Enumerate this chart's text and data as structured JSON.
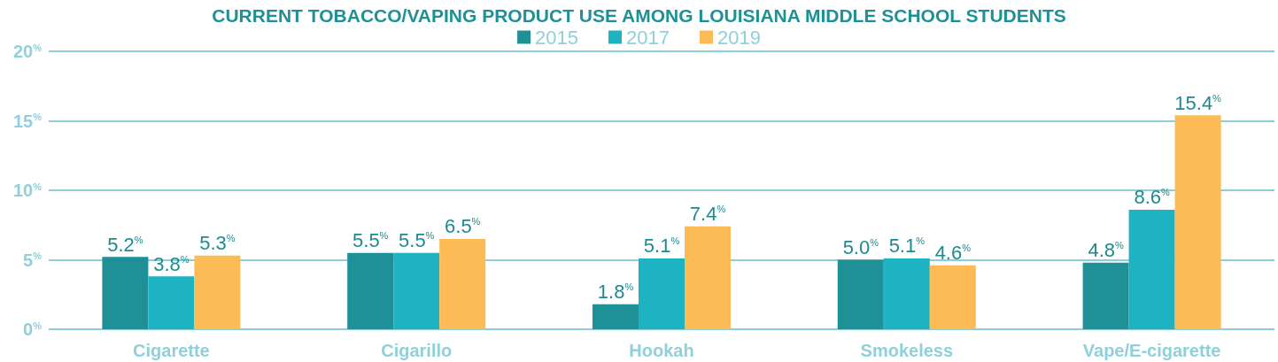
{
  "chart_data": {
    "type": "bar",
    "title": "CURRENT TOBACCO/VAPING PRODUCT USE AMONG LOUISIANA MIDDLE SCHOOL STUDENTS",
    "categories": [
      "Cigarette",
      "Cigarillo",
      "Hookah",
      "Smokeless",
      "Vape/E-cigarette"
    ],
    "series": [
      {
        "name": "2015",
        "color": "#1e9096",
        "values": [
          5.2,
          5.5,
          1.8,
          5.0,
          4.8
        ],
        "value_labels": [
          "5.2$^{%}$",
          "5.5$^{%}$",
          "1.8$^{%}$",
          "5.0$^{%}$",
          "4.8$^{%}$"
        ]
      },
      {
        "name": "2017",
        "color": "#1db3c2",
        "values": [
          3.8,
          5.5,
          5.1,
          5.1,
          8.6
        ],
        "value_labels": [
          "3.8$^{%}$",
          "5.5$^{%}$",
          "5.1$^{%}$",
          "5.1$^{%}$",
          "8.6$^{%}$"
        ]
      },
      {
        "name": "2019",
        "color": "#fcbb55",
        "values": [
          5.3,
          6.5,
          7.4,
          4.6,
          15.4
        ],
        "value_labels": [
          "5.3$^{%}$",
          "6.5$^{%}$",
          "7.4$^{%}$",
          "4.6$^{%}$",
          "15.4$^{%}$"
        ]
      }
    ],
    "ylim": [
      0,
      20
    ],
    "yticks": [
      {
        "value": 0,
        "label": "0$^{%}$"
      },
      {
        "value": 5,
        "label": "5$^{%}$"
      },
      {
        "value": 10,
        "label": "10$^{%}$"
      },
      {
        "value": 15,
        "label": "15$^{%}$"
      },
      {
        "value": 20,
        "label": "20$^{%}$"
      }
    ],
    "grid": "y",
    "legend": "top"
  }
}
